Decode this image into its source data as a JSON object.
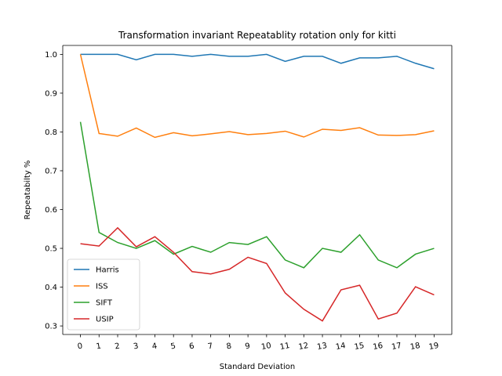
{
  "chart_data": {
    "type": "line",
    "title": "Transformation invariant Repeatablity rotation only for kitti",
    "xlabel": "Standard Deviation",
    "ylabel": "Repeatabilty %",
    "x": [
      0,
      1,
      2,
      3,
      4,
      5,
      6,
      7,
      8,
      9,
      10,
      11,
      12,
      13,
      14,
      15,
      16,
      17,
      18,
      19
    ],
    "x_tick_labels": [
      "0",
      "1",
      "2",
      "3",
      "4",
      "5",
      "6",
      "7",
      "8",
      "9",
      "10",
      "11",
      "12",
      "13",
      "14",
      "15",
      "16",
      "17",
      "18",
      "19"
    ],
    "x_tick_rotation_deg": -10,
    "y_ticks": [
      0.3,
      0.4,
      0.5,
      0.6,
      0.7,
      0.8,
      0.9,
      1.0
    ],
    "y_tick_labels": [
      "0.3",
      "0.4",
      "0.5",
      "0.6",
      "0.7",
      "0.8",
      "0.9",
      "1.0"
    ],
    "xlim": [
      -0.95,
      19.95
    ],
    "ylim": [
      0.278,
      1.023
    ],
    "grid": false,
    "legend_position": "lower-left",
    "series": [
      {
        "name": "Harris",
        "color": "#1f77b4",
        "values": [
          1.0,
          1.0,
          1.0,
          0.986,
          1.0,
          1.0,
          0.995,
          1.0,
          0.995,
          0.995,
          1.0,
          0.982,
          0.995,
          0.995,
          0.977,
          0.991,
          0.991,
          0.995,
          0.977,
          0.963
        ]
      },
      {
        "name": "ISS",
        "color": "#ff7f0e",
        "values": [
          1.0,
          0.796,
          0.789,
          0.81,
          0.786,
          0.798,
          0.79,
          0.795,
          0.801,
          0.793,
          0.796,
          0.802,
          0.787,
          0.807,
          0.804,
          0.811,
          0.792,
          0.791,
          0.793,
          0.803
        ]
      },
      {
        "name": "SIFT",
        "color": "#2ca02c",
        "values": [
          0.826,
          0.541,
          0.515,
          0.5,
          0.52,
          0.485,
          0.505,
          0.49,
          0.515,
          0.51,
          0.53,
          0.47,
          0.45,
          0.5,
          0.49,
          0.535,
          0.47,
          0.45,
          0.485,
          0.5
        ]
      },
      {
        "name": "USIP",
        "color": "#d62728",
        "values": [
          0.512,
          0.506,
          0.553,
          0.504,
          0.53,
          0.49,
          0.44,
          0.434,
          0.446,
          0.477,
          0.461,
          0.385,
          0.343,
          0.313,
          0.393,
          0.405,
          0.318,
          0.333,
          0.401,
          0.38
        ]
      }
    ]
  }
}
